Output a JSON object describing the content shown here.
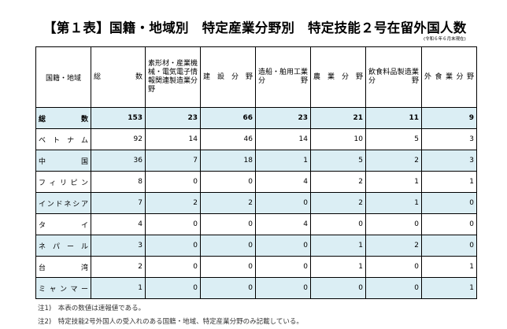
{
  "title": "【第１表】国籍・地域別　特定産業分野別　特定技能２号在留外国人数",
  "as_of": "(令和６年６月末現在)",
  "headers": [
    "国籍・地域",
    "総　　数",
    "素形材・産業機械・電気電子情報関連製造業分野",
    "建設分野",
    "造船・舶用工業分野",
    "農業分野",
    "飲食料品製造業分野",
    "外食業分野"
  ],
  "rows": [
    {
      "label": "総　　数",
      "values": [
        153,
        23,
        66,
        23,
        21,
        11,
        9
      ]
    },
    {
      "label": "ベトナム",
      "values": [
        92,
        14,
        46,
        14,
        10,
        5,
        3
      ]
    },
    {
      "label": "中　　国",
      "values": [
        36,
        7,
        18,
        1,
        5,
        2,
        3
      ]
    },
    {
      "label": "フィリピン",
      "values": [
        8,
        0,
        0,
        4,
        2,
        1,
        1
      ]
    },
    {
      "label": "インドネシア",
      "values": [
        7,
        2,
        2,
        0,
        2,
        1,
        0
      ]
    },
    {
      "label": "タ　　イ",
      "values": [
        4,
        0,
        0,
        4,
        0,
        0,
        0
      ]
    },
    {
      "label": "ネパール",
      "values": [
        3,
        0,
        0,
        0,
        1,
        2,
        0
      ]
    },
    {
      "label": "台　　湾",
      "values": [
        2,
        0,
        0,
        0,
        1,
        0,
        1
      ]
    },
    {
      "label": "ミャンマー",
      "values": [
        1,
        0,
        0,
        0,
        0,
        0,
        1
      ]
    }
  ],
  "notes": [
    "注1)　本表の数値は速報値である。",
    "注2)　特定技能2号外国人の受入れのある国籍・地域、特定産業分野のみ記載している。"
  ],
  "colors": {
    "row_highlight": "#dbeef4",
    "border": "#000000"
  }
}
